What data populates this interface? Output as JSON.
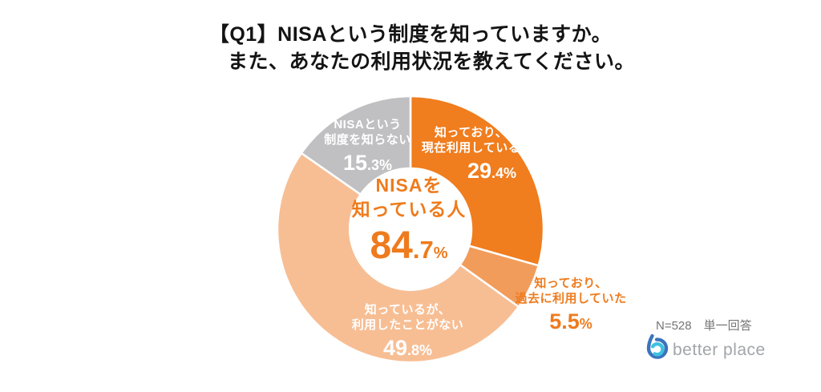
{
  "title": {
    "line1": "【Q1】NISAという制度を知っていますか。",
    "line2": "また、あなたの利用状況を教えてください。"
  },
  "chart_data": {
    "type": "pie",
    "subtype": "donut",
    "start_angle_deg": 0,
    "direction": "clockwise",
    "inner_radius_ratio": 0.46,
    "segments": [
      {
        "label_lines": [
          "知っており、",
          "現在利用している"
        ],
        "value": 29.4,
        "pct_main": "29",
        "pct_sub": ".4%",
        "color": "#F07D1E",
        "text_color": "#FFFFFF",
        "label_placement": "inside"
      },
      {
        "label_lines": [
          "知っており、",
          "過去に利用していた"
        ],
        "value": 5.5,
        "pct_main": "5.5",
        "pct_sub": "%",
        "color": "#F29C5B",
        "text_color": "#EE7B1D",
        "label_placement": "outside-right"
      },
      {
        "label_lines": [
          "知っているが、",
          "利用したことがない"
        ],
        "value": 49.8,
        "pct_main": "49",
        "pct_sub": ".8%",
        "color": "#F7BE94",
        "text_color": "#FFFFFF",
        "label_placement": "inside"
      },
      {
        "label_lines": [
          "NISAという",
          "制度を知らない"
        ],
        "value": 15.3,
        "pct_main": "15",
        "pct_sub": ".3%",
        "color": "#C0C0C2",
        "text_color": "#FFFFFF",
        "label_placement": "inside"
      }
    ],
    "center": {
      "lines": [
        "NISAを",
        "知っている人"
      ],
      "pct_main": "84",
      "pct_sub": ".7",
      "pct_symbol": "%",
      "text_color": "#EE7B1D"
    },
    "separator_color": "#FFFFFF",
    "legend_position": "labels-on-slices"
  },
  "footer": {
    "note": "N=528　単一回答"
  },
  "logo": {
    "text": "better place",
    "text_color": "#A1A5A9",
    "mark_outer_color": "#3B74BC",
    "mark_inner_color": "#3EC1E0"
  }
}
